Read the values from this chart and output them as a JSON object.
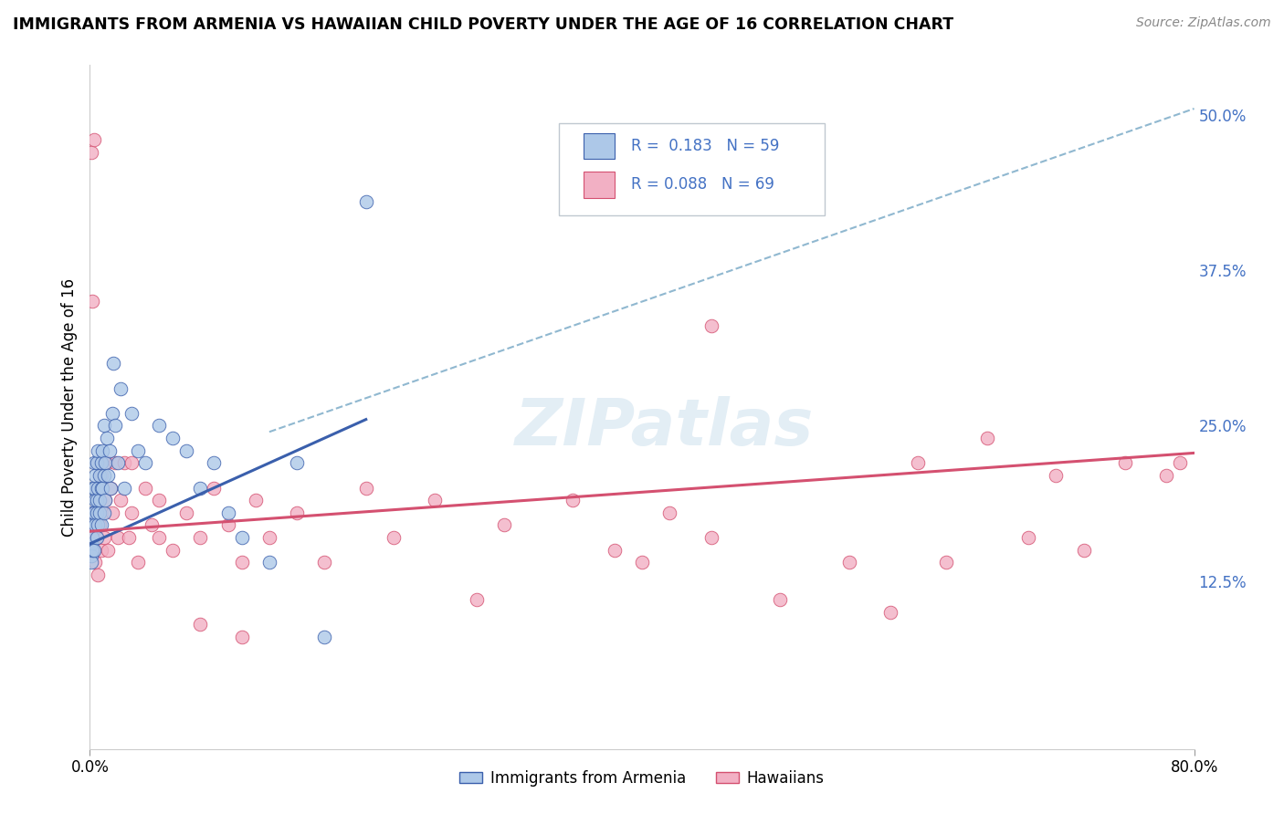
{
  "title": "IMMIGRANTS FROM ARMENIA VS HAWAIIAN CHILD POVERTY UNDER THE AGE OF 16 CORRELATION CHART",
  "source": "Source: ZipAtlas.com",
  "ylabel": "Child Poverty Under the Age of 16",
  "legend_r1": "R =  0.183",
  "legend_n1": "N = 59",
  "legend_r2": "R = 0.088",
  "legend_n2": "N = 69",
  "legend_label1": "Immigrants from Armenia",
  "legend_label2": "Hawaiians",
  "color_blue": "#adc8e8",
  "color_pink": "#f2b0c4",
  "color_blue_line": "#3a5fac",
  "color_pink_line": "#d45070",
  "color_dashed": "#90b8d0",
  "watermark_text": "ZIPatlas",
  "blue_x": [
    0.001,
    0.001,
    0.001,
    0.002,
    0.002,
    0.002,
    0.002,
    0.002,
    0.003,
    0.003,
    0.003,
    0.003,
    0.004,
    0.004,
    0.004,
    0.005,
    0.005,
    0.005,
    0.005,
    0.006,
    0.006,
    0.006,
    0.007,
    0.007,
    0.007,
    0.008,
    0.008,
    0.008,
    0.009,
    0.009,
    0.01,
    0.01,
    0.01,
    0.011,
    0.011,
    0.012,
    0.013,
    0.014,
    0.015,
    0.016,
    0.017,
    0.018,
    0.02,
    0.022,
    0.025,
    0.03,
    0.035,
    0.04,
    0.05,
    0.06,
    0.07,
    0.08,
    0.09,
    0.1,
    0.11,
    0.13,
    0.15,
    0.17,
    0.2
  ],
  "blue_y": [
    0.155,
    0.145,
    0.14,
    0.18,
    0.15,
    0.16,
    0.17,
    0.2,
    0.15,
    0.18,
    0.2,
    0.22,
    0.19,
    0.17,
    0.21,
    0.16,
    0.19,
    0.22,
    0.18,
    0.2,
    0.17,
    0.23,
    0.18,
    0.21,
    0.19,
    0.17,
    0.2,
    0.22,
    0.2,
    0.23,
    0.18,
    0.21,
    0.25,
    0.22,
    0.19,
    0.24,
    0.21,
    0.23,
    0.2,
    0.26,
    0.3,
    0.25,
    0.22,
    0.28,
    0.2,
    0.26,
    0.23,
    0.22,
    0.25,
    0.24,
    0.23,
    0.2,
    0.22,
    0.18,
    0.16,
    0.14,
    0.22,
    0.08,
    0.43
  ],
  "pink_x": [
    0.001,
    0.002,
    0.002,
    0.003,
    0.003,
    0.004,
    0.004,
    0.005,
    0.005,
    0.006,
    0.006,
    0.007,
    0.007,
    0.008,
    0.008,
    0.009,
    0.01,
    0.011,
    0.012,
    0.013,
    0.015,
    0.016,
    0.018,
    0.02,
    0.022,
    0.025,
    0.028,
    0.03,
    0.035,
    0.04,
    0.045,
    0.05,
    0.06,
    0.07,
    0.08,
    0.09,
    0.1,
    0.11,
    0.12,
    0.13,
    0.15,
    0.17,
    0.2,
    0.22,
    0.25,
    0.28,
    0.3,
    0.35,
    0.38,
    0.4,
    0.42,
    0.45,
    0.5,
    0.55,
    0.58,
    0.6,
    0.62,
    0.65,
    0.68,
    0.7,
    0.72,
    0.75,
    0.78,
    0.79,
    0.03,
    0.05,
    0.08,
    0.11,
    0.45
  ],
  "pink_y": [
    0.47,
    0.35,
    0.16,
    0.48,
    0.15,
    0.18,
    0.14,
    0.2,
    0.16,
    0.22,
    0.13,
    0.17,
    0.19,
    0.15,
    0.21,
    0.18,
    0.16,
    0.19,
    0.22,
    0.15,
    0.2,
    0.18,
    0.22,
    0.16,
    0.19,
    0.22,
    0.16,
    0.18,
    0.14,
    0.2,
    0.17,
    0.19,
    0.15,
    0.18,
    0.16,
    0.2,
    0.17,
    0.14,
    0.19,
    0.16,
    0.18,
    0.14,
    0.2,
    0.16,
    0.19,
    0.11,
    0.17,
    0.19,
    0.15,
    0.14,
    0.18,
    0.16,
    0.11,
    0.14,
    0.1,
    0.22,
    0.14,
    0.24,
    0.16,
    0.21,
    0.15,
    0.22,
    0.21,
    0.22,
    0.22,
    0.16,
    0.09,
    0.08,
    0.33
  ],
  "blue_line_x0": 0.0,
  "blue_line_x1": 0.2,
  "blue_line_y0": 0.155,
  "blue_line_y1": 0.255,
  "pink_line_x0": 0.0,
  "pink_line_x1": 0.8,
  "pink_line_y0": 0.165,
  "pink_line_y1": 0.228,
  "dash_line_x0": 0.13,
  "dash_line_x1": 0.8,
  "dash_line_y0": 0.245,
  "dash_line_y1": 0.505,
  "xlim": [
    0.0,
    0.8
  ],
  "ylim": [
    -0.01,
    0.54
  ],
  "ytick_vals": [
    0.0,
    0.125,
    0.25,
    0.375,
    0.5
  ],
  "ytick_labels": [
    "",
    "12.5%",
    "25.0%",
    "37.5%",
    "50.0%"
  ]
}
